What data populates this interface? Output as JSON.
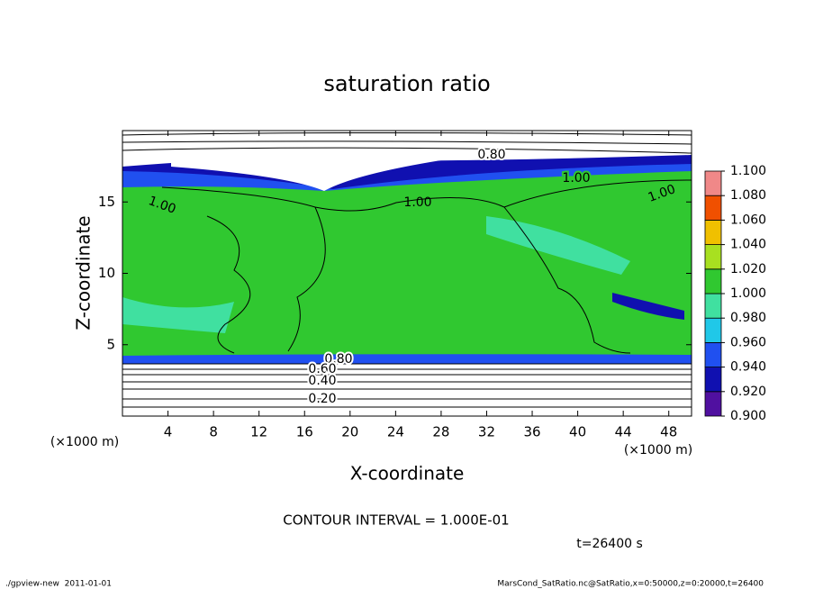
{
  "chart_data": {
    "type": "contour",
    "title": "saturation ratio",
    "x_label": "X-coordinate",
    "y_label": "Z-coordinate",
    "x_unit": "(×1000 m)",
    "y_unit": "(×1000 m)",
    "xlim": [
      0,
      50
    ],
    "xticks": [
      4,
      8,
      12,
      16,
      20,
      24,
      28,
      32,
      36,
      40,
      44,
      48
    ],
    "ylim": [
      0,
      20
    ],
    "yticks": [
      5,
      10,
      15
    ],
    "colorbar": {
      "ticks": [
        {
          "value": 0.9,
          "label": "0.900"
        },
        {
          "value": 0.92,
          "label": "0.920"
        },
        {
          "value": 0.94,
          "label": "0.940"
        },
        {
          "value": 0.96,
          "label": "0.960"
        },
        {
          "value": 0.98,
          "label": "0.980"
        },
        {
          "value": 1.0,
          "label": "1.000"
        },
        {
          "value": 1.02,
          "label": "1.020"
        },
        {
          "value": 1.04,
          "label": "1.040"
        },
        {
          "value": 1.06,
          "label": "1.060"
        },
        {
          "value": 1.08,
          "label": "1.080"
        },
        {
          "value": 1.1,
          "label": "1.100"
        }
      ],
      "colors": [
        "#5010a0",
        "#1010b0",
        "#2050f0",
        "#20c8e8",
        "#40e0a0",
        "#30c830",
        "#a8e020",
        "#f0c000",
        "#f05000",
        "#f08888"
      ]
    },
    "contour_labels": [
      "0.80",
      "1.00",
      "1.00",
      "1.00",
      "1.00",
      "0.80",
      "0.60",
      "0.40",
      "0.20"
    ],
    "contour_interval": "CONTOUR INTERVAL = 1.000E-01",
    "time": "t=26400 s",
    "footer_left": "./gpview-new  2011-01-01",
    "footer_right": "MarsCond_SatRatio.nc@SatRatio,x=0:50000,z=0:20000,t=26400"
  }
}
